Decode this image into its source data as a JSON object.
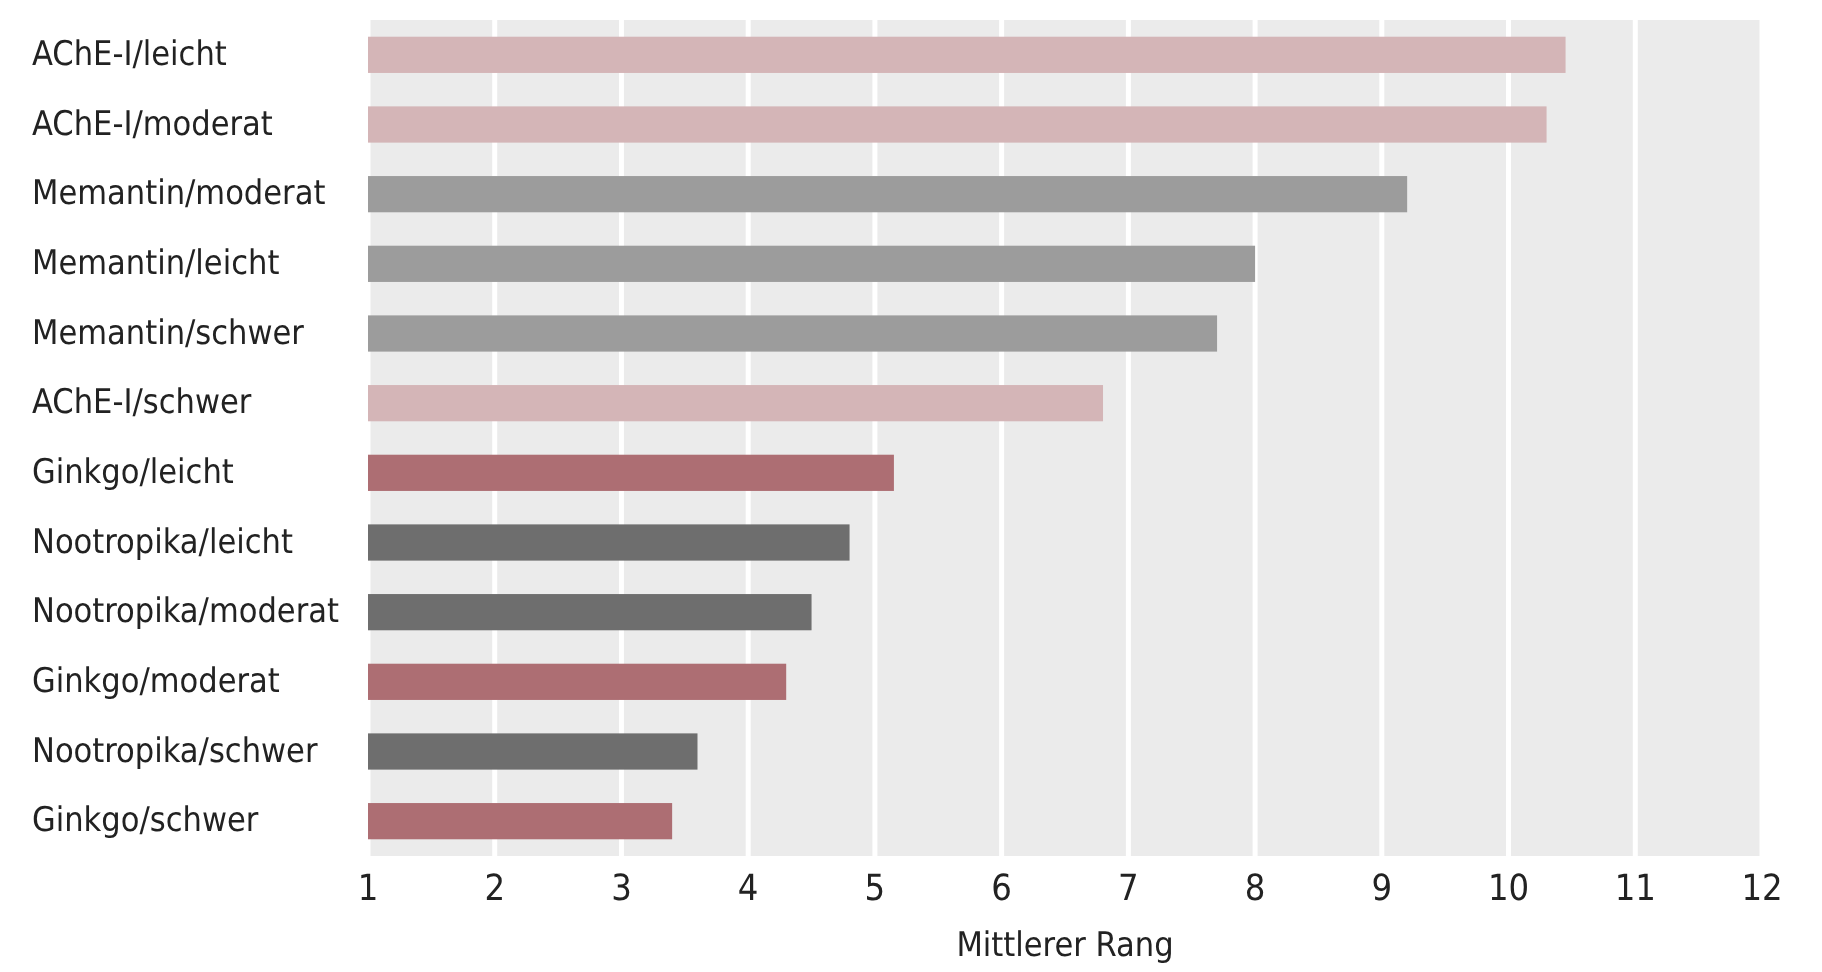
{
  "chart_data": {
    "type": "bar",
    "orientation": "horizontal",
    "xlabel": "Mittlerer Rang",
    "categories": [
      "AChE-I/leicht",
      "AChE-I/moderat",
      "Memantin/moderat",
      "Memantin/leicht",
      "Memantin/schwer",
      "AChE-I/schwer",
      "Ginkgo/leicht",
      "Nootropika/leicht",
      "Nootropika/moderat",
      "Ginkgo/moderat",
      "Nootropika/schwer",
      "Ginkgo/schwer"
    ],
    "values": [
      10.45,
      10.3,
      9.2,
      8.0,
      7.7,
      6.8,
      5.15,
      4.8,
      4.5,
      4.3,
      3.6,
      3.4
    ],
    "colors": [
      "#d4b5b7",
      "#d4b5b7",
      "#9c9c9c",
      "#9c9c9c",
      "#9c9c9c",
      "#d4b5b7",
      "#ad6e73",
      "#6e6e6e",
      "#6e6e6e",
      "#ad6e73",
      "#6e6e6e",
      "#ad6e73"
    ],
    "xlim": [
      1,
      12
    ],
    "xticks": [
      1,
      2,
      3,
      4,
      5,
      6,
      7,
      8,
      9,
      10,
      11,
      12
    ],
    "grid": "x"
  }
}
